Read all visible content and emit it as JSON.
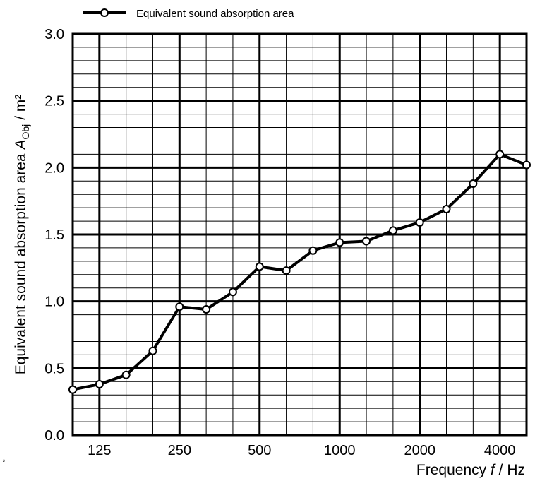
{
  "chart_data": {
    "type": "line",
    "title": "",
    "legend": {
      "label": "Equivalent sound absorption area",
      "placement": "top-left"
    },
    "xlabel": {
      "prefix": "Frequency ",
      "var": "f",
      "suffix": " / Hz"
    },
    "ylabel": {
      "prefix": "Equivalent sound absorption area ",
      "var": "A",
      "sub": "Obj",
      "suffix": " / m²"
    },
    "stray_text": "²",
    "x_tick_labels": [
      "125",
      "250",
      "500",
      "1000",
      "2000",
      "4000"
    ],
    "y_tick_labels": [
      "0.0",
      "0.5",
      "1.0",
      "1.5",
      "2.0",
      "2.5",
      "3.0"
    ],
    "ylim": [
      0,
      3
    ],
    "xlim": [
      100,
      5000
    ],
    "x_scale": "log (third-octave bands)",
    "grid": true,
    "series": [
      {
        "name": "Equivalent sound absorption area",
        "x": [
          100,
          125,
          160,
          200,
          250,
          315,
          400,
          500,
          630,
          800,
          1000,
          1250,
          1600,
          2000,
          2500,
          3150,
          4000,
          5000
        ],
        "values": [
          0.34,
          0.38,
          0.45,
          0.63,
          0.96,
          0.94,
          1.07,
          1.26,
          1.23,
          1.38,
          1.44,
          1.45,
          1.53,
          1.59,
          1.69,
          1.88,
          2.1,
          2.02
        ]
      }
    ]
  }
}
